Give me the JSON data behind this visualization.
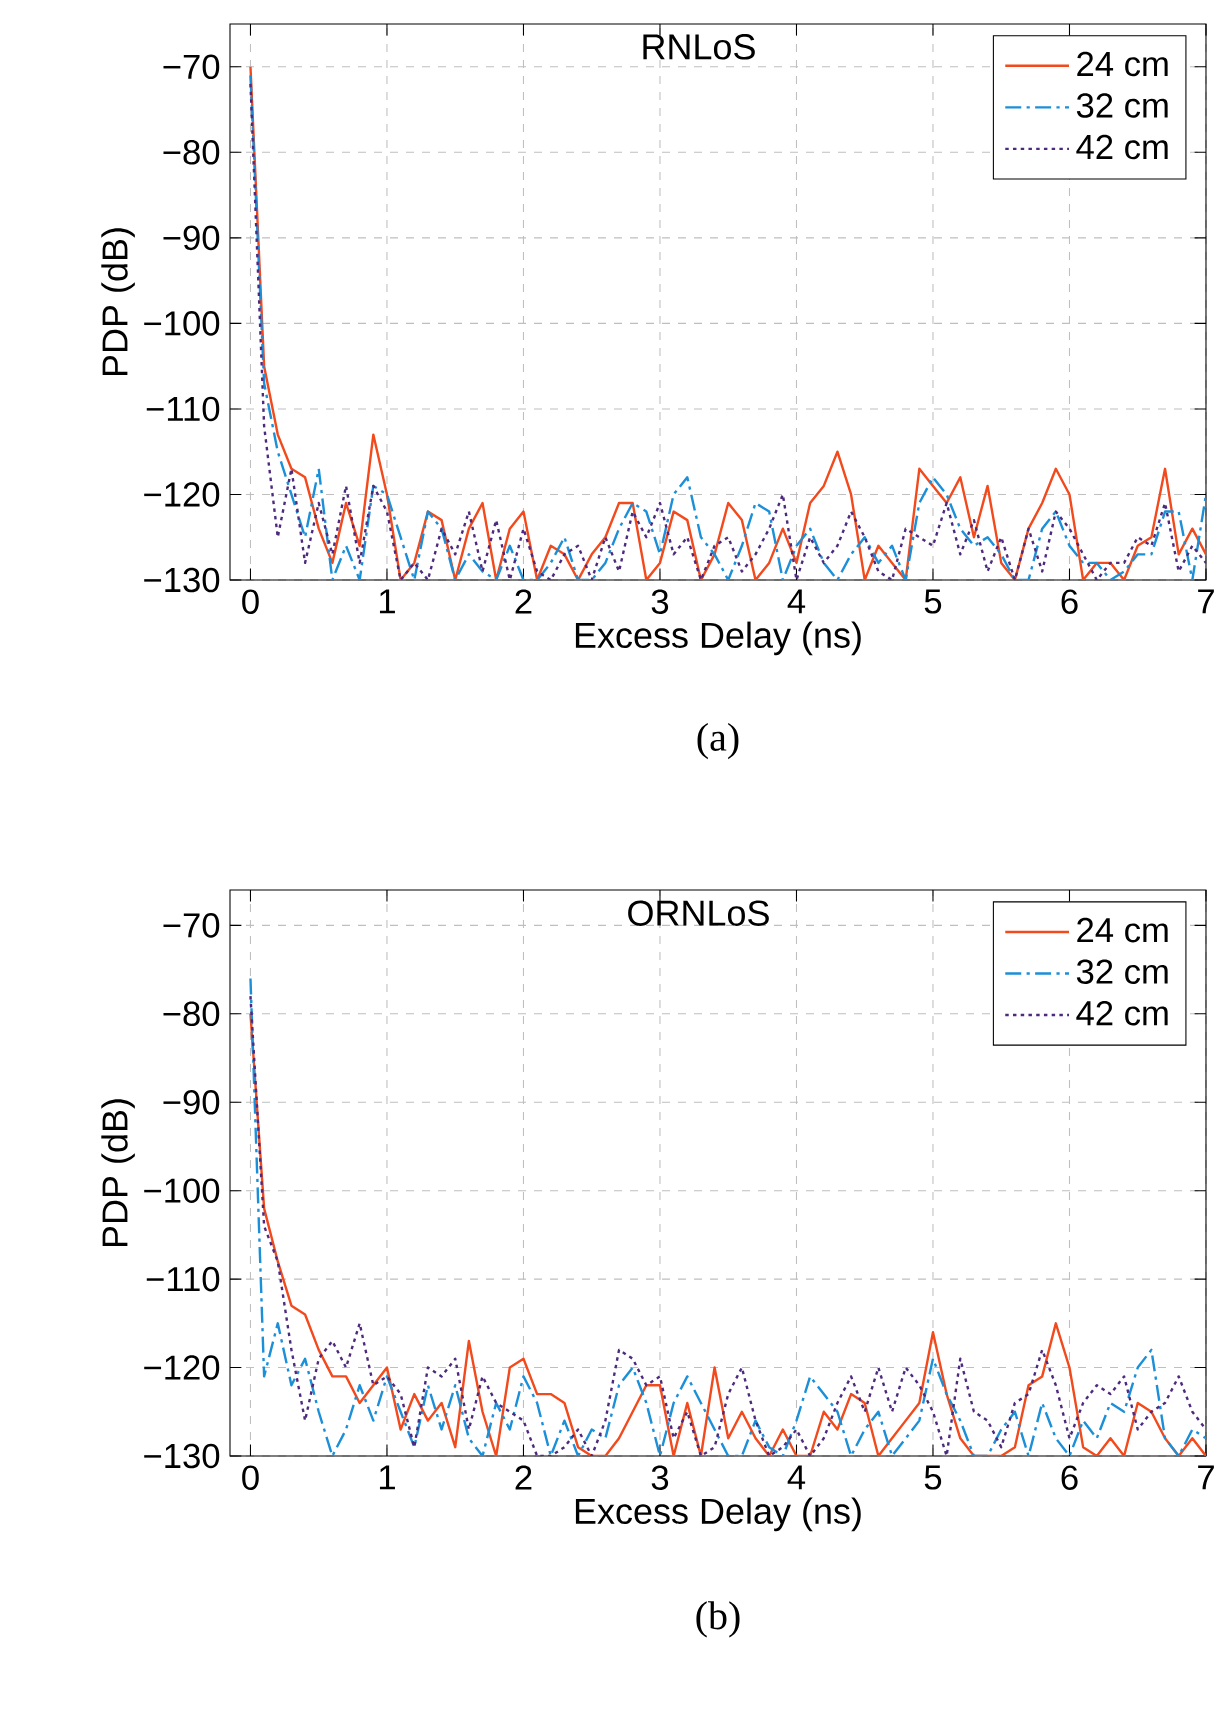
{
  "chart_data": [
    {
      "type": "line",
      "title": "RNLoS",
      "xlabel": "Excess Delay (ns)",
      "ylabel": "PDP (dB)",
      "annotations": [
        "(a)"
      ],
      "x": [
        0,
        0.1,
        0.2,
        0.3,
        0.4,
        0.5,
        0.6,
        0.7,
        0.8,
        0.9,
        1,
        1.1,
        1.2,
        1.3,
        1.4,
        1.5,
        1.6,
        1.7,
        1.8,
        1.9,
        2,
        2.1,
        2.2,
        2.3,
        2.4,
        2.5,
        2.6,
        2.7,
        2.8,
        2.9,
        3,
        3.1,
        3.2,
        3.3,
        3.4,
        3.5,
        3.6,
        3.7,
        3.8,
        3.9,
        4,
        4.1,
        4.2,
        4.3,
        4.4,
        4.5,
        4.6,
        4.7,
        4.8,
        4.9,
        5,
        5.1,
        5.2,
        5.3,
        5.4,
        5.5,
        5.6,
        5.7,
        5.8,
        5.9,
        6,
        6.1,
        6.2,
        6.3,
        6.4,
        6.5,
        6.6,
        6.7,
        6.8,
        6.9,
        7
      ],
      "series": [
        {
          "name": "24 cm",
          "color": "#f24a1c",
          "line_style": "solid",
          "values": [
            -70,
            -105,
            -113,
            -117,
            -118,
            -124,
            -128,
            -121,
            -126,
            -113,
            -120,
            -130,
            -128,
            -122,
            -123,
            -130,
            -124,
            -121,
            -130,
            -124,
            -122,
            -130,
            -126,
            -127,
            -130,
            -127,
            -125,
            -121,
            -121,
            -130,
            -128,
            -122,
            -123,
            -130,
            -127,
            -121,
            -123,
            -130,
            -128,
            -124,
            -128,
            -121,
            -119,
            -115,
            -120,
            -130,
            -126,
            -128,
            -130,
            -117,
            -119,
            -121,
            -118,
            -125,
            -119,
            -128,
            -130,
            -124,
            -121,
            -117,
            -120,
            -130,
            -128,
            -128,
            -130,
            -126,
            -125,
            -117,
            -127,
            -124,
            -127
          ]
        },
        {
          "name": "32 cm",
          "color": "#1b8fd8",
          "line_style": "dashdot",
          "values": [
            -71,
            -107,
            -115,
            -120,
            -125,
            -117,
            -130,
            -126,
            -130,
            -119,
            -120,
            -125,
            -130,
            -122,
            -124,
            -130,
            -127,
            -129,
            -130,
            -126,
            -130,
            -130,
            -128,
            -125,
            -130,
            -130,
            -128,
            -124,
            -121,
            -122,
            -127,
            -120,
            -118,
            -125,
            -127,
            -130,
            -126,
            -121,
            -122,
            -130,
            -126,
            -124,
            -128,
            -130,
            -127,
            -125,
            -128,
            -126,
            -130,
            -121,
            -118,
            -120,
            -124,
            -126,
            -125,
            -127,
            -130,
            -130,
            -124,
            -122,
            -126,
            -128,
            -128,
            -130,
            -129,
            -127,
            -127,
            -122,
            -122,
            -130,
            -120
          ]
        },
        {
          "name": "42 cm",
          "color": "#4e2a7e",
          "line_style": "dotted",
          "values": [
            -72,
            -112,
            -125,
            -117,
            -128,
            -121,
            -127,
            -119,
            -128,
            -119,
            -122,
            -130,
            -128,
            -130,
            -124,
            -127,
            -122,
            -129,
            -123,
            -130,
            -124,
            -129,
            -130,
            -127,
            -126,
            -130,
            -125,
            -129,
            -122,
            -125,
            -121,
            -127,
            -125,
            -130,
            -126,
            -125,
            -129,
            -127,
            -124,
            -120,
            -130,
            -125,
            -128,
            -126,
            -122,
            -125,
            -129,
            -130,
            -124,
            -125,
            -126,
            -121,
            -127,
            -123,
            -129,
            -125,
            -130,
            -124,
            -129,
            -122,
            -124,
            -127,
            -130,
            -128,
            -128,
            -125,
            -126,
            -121,
            -129,
            -126,
            -128
          ]
        }
      ],
      "xlim": [
        -0.15,
        7
      ],
      "ylim": [
        -130,
        -65
      ],
      "xticks": [
        0,
        1,
        2,
        3,
        4,
        5,
        6,
        7
      ],
      "yticks": [
        {
          "value": -130,
          "label": "−130"
        },
        {
          "value": -120,
          "label": "−120"
        },
        {
          "value": -110,
          "label": "−110"
        },
        {
          "value": -100,
          "label": "−100"
        },
        {
          "value": -90,
          "label": "−90"
        },
        {
          "value": -80,
          "label": "−80"
        },
        {
          "value": -70,
          "label": "−70"
        }
      ],
      "grid": true,
      "legend": "top right"
    },
    {
      "type": "line",
      "title": "ORNLoS",
      "xlabel": "Excess Delay (ns)",
      "ylabel": "PDP (dB)",
      "annotations": [
        "(b)"
      ],
      "x": [
        0,
        0.1,
        0.2,
        0.3,
        0.4,
        0.5,
        0.6,
        0.7,
        0.8,
        0.9,
        1,
        1.1,
        1.2,
        1.3,
        1.4,
        1.5,
        1.6,
        1.7,
        1.8,
        1.9,
        2,
        2.1,
        2.2,
        2.3,
        2.4,
        2.5,
        2.6,
        2.7,
        2.8,
        2.9,
        3,
        3.1,
        3.2,
        3.3,
        3.4,
        3.5,
        3.6,
        3.7,
        3.8,
        3.9,
        4,
        4.1,
        4.2,
        4.3,
        4.4,
        4.5,
        4.6,
        4.7,
        4.8,
        4.9,
        5,
        5.1,
        5.2,
        5.3,
        5.4,
        5.5,
        5.6,
        5.7,
        5.8,
        5.9,
        6,
        6.1,
        6.2,
        6.3,
        6.4,
        6.5,
        6.6,
        6.7,
        6.8,
        6.9,
        7
      ],
      "series": [
        {
          "name": "24 cm",
          "color": "#f24a1c",
          "line_style": "solid",
          "values": [
            -80,
            -102,
            -108,
            -113,
            -114,
            -118,
            -121,
            -121,
            -124,
            -122,
            -120,
            -127,
            -123,
            -126,
            -124,
            -129,
            -117,
            -125,
            -130,
            -120,
            -119,
            -123,
            -123,
            -124,
            -129,
            -130,
            -130,
            -128,
            -125,
            -122,
            -122,
            -130,
            -124,
            -130,
            -120,
            -128,
            -125,
            -128,
            -130,
            -127,
            -130,
            -130,
            -125,
            -127,
            -123,
            -124,
            -130,
            -128,
            -126,
            -124,
            -116,
            -123,
            -128,
            -130,
            -130,
            -130,
            -129,
            -122,
            -121,
            -115,
            -120,
            -129,
            -130,
            -128,
            -130,
            -124,
            -125,
            -128,
            -130,
            -128,
            -130
          ]
        },
        {
          "name": "32 cm",
          "color": "#1b8fd8",
          "line_style": "dashdot",
          "values": [
            -76,
            -121,
            -115,
            -122,
            -119,
            -125,
            -130,
            -127,
            -122,
            -126,
            -121,
            -125,
            -129,
            -122,
            -127,
            -122,
            -128,
            -130,
            -124,
            -127,
            -121,
            -124,
            -130,
            -126,
            -130,
            -127,
            -128,
            -122,
            -120,
            -124,
            -130,
            -124,
            -121,
            -124,
            -127,
            -130,
            -130,
            -126,
            -129,
            -130,
            -126,
            -121,
            -123,
            -125,
            -130,
            -127,
            -125,
            -130,
            -128,
            -126,
            -119,
            -123,
            -126,
            -130,
            -130,
            -127,
            -125,
            -130,
            -124,
            -128,
            -130,
            -126,
            -128,
            -124,
            -125,
            -120,
            -118,
            -128,
            -130,
            -127,
            -128
          ]
        },
        {
          "name": "42 cm",
          "color": "#4e2a7e",
          "line_style": "dotted",
          "values": [
            -78,
            -104,
            -108,
            -118,
            -126,
            -119,
            -117,
            -120,
            -115,
            -122,
            -121,
            -123,
            -129,
            -120,
            -121,
            -119,
            -127,
            -121,
            -124,
            -125,
            -126,
            -130,
            -130,
            -129,
            -127,
            -130,
            -126,
            -118,
            -119,
            -122,
            -121,
            -128,
            -125,
            -130,
            -129,
            -123,
            -120,
            -126,
            -130,
            -129,
            -127,
            -130,
            -128,
            -124,
            -121,
            -125,
            -120,
            -125,
            -120,
            -122,
            -125,
            -130,
            -119,
            -125,
            -126,
            -129,
            -124,
            -123,
            -118,
            -122,
            -128,
            -124,
            -122,
            -123,
            -121,
            -127,
            -125,
            -124,
            -121,
            -125,
            -127
          ]
        }
      ],
      "xlim": [
        -0.15,
        7
      ],
      "ylim": [
        -130,
        -66
      ],
      "xticks": [
        0,
        1,
        2,
        3,
        4,
        5,
        6,
        7
      ],
      "yticks": [
        {
          "value": -130,
          "label": "−130"
        },
        {
          "value": -120,
          "label": "−120"
        },
        {
          "value": -110,
          "label": "−110"
        },
        {
          "value": -100,
          "label": "−100"
        },
        {
          "value": -90,
          "label": "−90"
        },
        {
          "value": -80,
          "label": "−80"
        },
        {
          "value": -70,
          "label": "−70"
        }
      ],
      "grid": true,
      "legend": "top right"
    }
  ]
}
